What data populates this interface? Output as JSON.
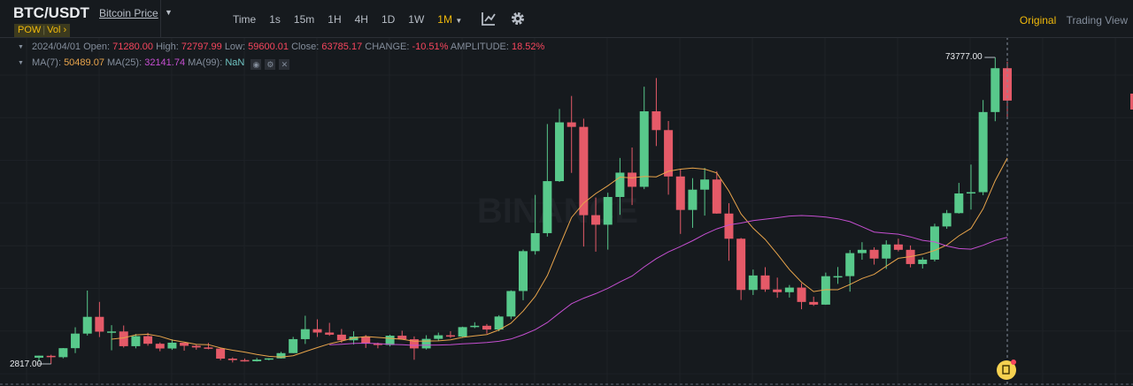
{
  "header": {
    "pair": "BTC/USDT",
    "pair_name": "Bitcoin Price",
    "tags": [
      "POW",
      "Vol"
    ],
    "intervals": [
      "Time",
      "1s",
      "15m",
      "1H",
      "4H",
      "1D",
      "1W",
      "1M"
    ],
    "active_interval": "1M",
    "icons": [
      "chart-indicator-icon",
      "gear-icon"
    ],
    "views": [
      "Original",
      "Trading View"
    ],
    "active_view": "Original"
  },
  "ohlc_info": {
    "date": "2024/04/01",
    "open_label": "Open:",
    "open": "71280.00",
    "high_label": "High:",
    "high": "72797.99",
    "low_label": "Low:",
    "low": "59600.01",
    "close_label": "Close:",
    "close": "63785.17",
    "change_label": "CHANGE:",
    "change": "-10.51%",
    "amplitude_label": "AMPLITUDE:",
    "amplitude": "18.52%"
  },
  "ma_info": {
    "ma7_label": "MA(7):",
    "ma7": "50489.07",
    "ma25_label": "MA(25):",
    "ma25": "32141.74",
    "ma99_label": "MA(99):",
    "ma99": "NaN"
  },
  "watermark": "BINANCE",
  "colors": {
    "up": "#58c98b",
    "down": "#e55a68",
    "ma7": "#e8a44b",
    "ma25": "#c54fd1",
    "accent": "#f0b90b"
  },
  "chart_data": {
    "type": "candlestick",
    "interval": "1M",
    "start": "2017/08",
    "end": "2024/04",
    "max_label": "73777.00",
    "min_label": "2817.00",
    "ylim": [
      2817,
      73777
    ],
    "grid": true,
    "ohlc": [
      [
        4261.48,
        4745.42,
        3400,
        4724.89
      ],
      [
        4689.89,
        4939.19,
        2817,
        4378.48
      ],
      [
        4378.51,
        6498.01,
        4110,
        6463
      ],
      [
        6463,
        11300.03,
        5325.01,
        9838.96
      ],
      [
        9837,
        19798.68,
        9380,
        13716.36
      ],
      [
        13715.65,
        17176.24,
        9035,
        10285.1
      ],
      [
        10285.1,
        11786,
        5968,
        10326.5
      ],
      [
        10325.87,
        11710,
        6600.1,
        6923.91
      ],
      [
        6922,
        9759.82,
        6430,
        9246.01
      ],
      [
        9246.01,
        10020,
        7032.95,
        7485.01
      ],
      [
        7485.01,
        7786.69,
        5750,
        6390.07
      ],
      [
        6391.08,
        8506,
        6070,
        7730.93
      ],
      [
        7735.67,
        7750,
        5880,
        7011.21
      ],
      [
        7011.21,
        7410,
        6111,
        6626.57
      ],
      [
        6626.57,
        7680,
        6205,
        6371.93
      ],
      [
        6369.52,
        6615.15,
        3652.66,
        4041.32
      ],
      [
        4041.27,
        4312.99,
        3156.26,
        3702.9
      ],
      [
        3701.23,
        4069.8,
        3349.92,
        3434.1
      ],
      [
        3434.1,
        4198,
        3373.1,
        3813.69
      ],
      [
        3814.26,
        4140,
        3670.69,
        4103.95
      ],
      [
        4102.44,
        5600,
        4067,
        5320.81
      ],
      [
        5321.94,
        9074.26,
        5316.2,
        8555
      ],
      [
        8555,
        13970,
        7444.58,
        10854.1
      ],
      [
        10854.1,
        13147.08,
        9060,
        10080.53
      ],
      [
        10080.53,
        12325,
        9320,
        9588.74
      ],
      [
        9588.74,
        10905.87,
        7710,
        8289.34
      ],
      [
        8289.97,
        10370,
        7300,
        9140.85
      ],
      [
        9140.86,
        9513.68,
        6515,
        7541.89
      ],
      [
        7540.63,
        7750,
        6435,
        7195.23
      ],
      [
        7195.24,
        9578,
        6871.04,
        9352.89
      ],
      [
        9351.71,
        10500,
        8445,
        8523.61
      ],
      [
        8523.61,
        9188,
        3782.13,
        6410.44
      ],
      [
        6412.14,
        9460,
        6150.11,
        8620
      ],
      [
        8620,
        10067,
        8117,
        9448.27
      ],
      [
        9448.27,
        10380,
        8833,
        9138.55
      ],
      [
        9138.08,
        11444,
        8893.03,
        11335.46
      ],
      [
        11335.46,
        12468,
        11100,
        11649.51
      ],
      [
        11649.51,
        12050.85,
        9825,
        10776.59
      ],
      [
        10776.59,
        14100,
        10374,
        13791
      ],
      [
        13791,
        19863.16,
        13195.05,
        19695.87
      ],
      [
        19695.87,
        29300,
        17572.33,
        28923.63
      ],
      [
        28923.63,
        41950,
        28130,
        33092.98
      ],
      [
        33092.97,
        58352.8,
        32296.16,
        45135.66
      ],
      [
        45134.11,
        61844,
        44950.53,
        58740.55
      ],
      [
        58739.46,
        64854,
        47044.01,
        57694.27
      ],
      [
        57697.25,
        59600,
        30000,
        37253.81
      ],
      [
        37253.82,
        41330,
        28805,
        35045
      ],
      [
        35045,
        42448,
        29278,
        41461.83
      ],
      [
        41461.84,
        50500,
        37332.7,
        47100.89
      ],
      [
        47100.89,
        52920,
        39600,
        43824.43
      ],
      [
        43820.01,
        66999,
        43283.03,
        61299.8
      ],
      [
        61299.81,
        69000,
        53256.64,
        56950.56
      ],
      [
        56950.56,
        59053.55,
        42000.3,
        46216.93
      ],
      [
        46216.93,
        47990,
        32917.17,
        38466.9
      ],
      [
        38466.9,
        45821,
        34322.28,
        43160
      ],
      [
        43160,
        48189.84,
        37155,
        45510.34
      ],
      [
        45510.35,
        47444.11,
        37578.2,
        37630.8
      ],
      [
        37630.8,
        40023.77,
        26700,
        31801.04
      ],
      [
        31801.05,
        31982.97,
        17622,
        19942.21
      ],
      [
        19942.21,
        24668,
        18781,
        23293.32
      ],
      [
        23296.36,
        25211.32,
        19520,
        20050.02
      ],
      [
        20048.44,
        22799,
        18125.98,
        19422.61
      ],
      [
        19422.61,
        21085,
        18190,
        20490.74
      ],
      [
        20490.74,
        21480.65,
        15476,
        17163.64
      ],
      [
        17165.53,
        18387.95,
        16256.3,
        16542.4
      ],
      [
        16541.77,
        23960.54,
        16499.01,
        23125.13
      ],
      [
        23125.13,
        25250,
        21351.07,
        23141.57
      ],
      [
        23141.57,
        29184.68,
        19549.09,
        28465.36
      ],
      [
        28465.36,
        31000,
        26942.82,
        29233.21
      ],
      [
        29233.2,
        29820.13,
        25811.46,
        27210.35
      ],
      [
        27210.36,
        31431.94,
        24800,
        30472
      ],
      [
        30471.99,
        31804.2,
        28861.9,
        29232.25
      ],
      [
        29232.26,
        30244,
        25166,
        25940.78
      ],
      [
        25940.77,
        27483.57,
        24901,
        26962.56
      ],
      [
        26962.57,
        35280,
        26538.66,
        34639.77
      ],
      [
        34639.78,
        38450,
        34097.39,
        37723.96
      ],
      [
        37723.97,
        44729.58,
        37615.86,
        42283.58
      ],
      [
        42283.58,
        48969.48,
        38555,
        42580
      ],
      [
        42580,
        63913.13,
        41884.64,
        61130.98
      ],
      [
        61130.99,
        73777,
        59005,
        71280.01
      ],
      [
        71280,
        72797.99,
        59600.01,
        63785.17
      ]
    ],
    "moving_averages": [
      7,
      25,
      99
    ]
  }
}
